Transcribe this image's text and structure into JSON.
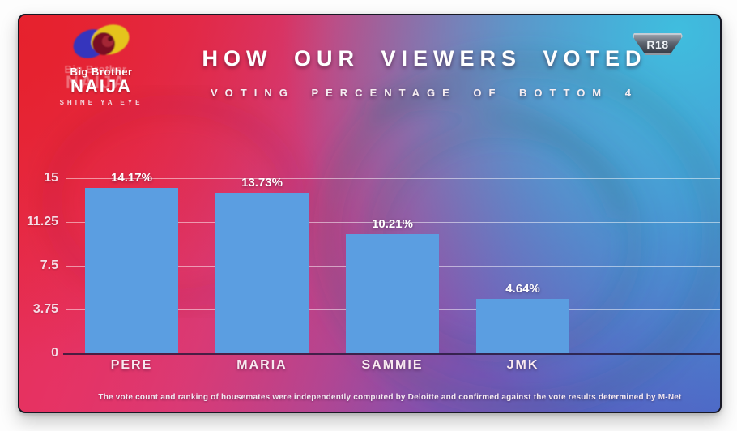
{
  "frame": {
    "age_rating": "R18"
  },
  "logo": {
    "icon": "big-brother-eye-icon",
    "brand_top": "Big Brother",
    "brand_main": "NAIJA",
    "tagline": "SHINE YA EYE"
  },
  "header": {
    "title": "HOW OUR VIEWERS VOTED",
    "subtitle": "VOTING PERCENTAGE OF BOTTOM 4"
  },
  "chart_data": {
    "type": "bar",
    "title": "HOW OUR VIEWERS VOTED",
    "subtitle": "VOTING PERCENTAGE OF BOTTOM 4",
    "categories": [
      "PERE",
      "MARIA",
      "SAMMIE",
      "JMK"
    ],
    "values": [
      14.17,
      13.73,
      10.21,
      4.64
    ],
    "value_labels": [
      "14.17%",
      "13.73%",
      "10.21%",
      "4.64%"
    ],
    "ytick_values": [
      0,
      3.75,
      7.5,
      11.25,
      15
    ],
    "ytick_labels": [
      "0",
      "3.75",
      "7.5",
      "11.25",
      "15"
    ],
    "ylim": [
      0,
      15
    ],
    "grid": true,
    "legend": false,
    "bar_color": "#5b9ee1"
  },
  "footer": {
    "disclaimer": "The vote count and ranking of housemates were independently computed by Deloitte and confirmed against the vote results determined by M-Net"
  },
  "colors": {
    "bar": "#5b9ee1",
    "background_left": "#e42732",
    "background_right": "#3dc3e0",
    "background_bottom": "#5a60c2",
    "badge_face": "#5d646f"
  }
}
